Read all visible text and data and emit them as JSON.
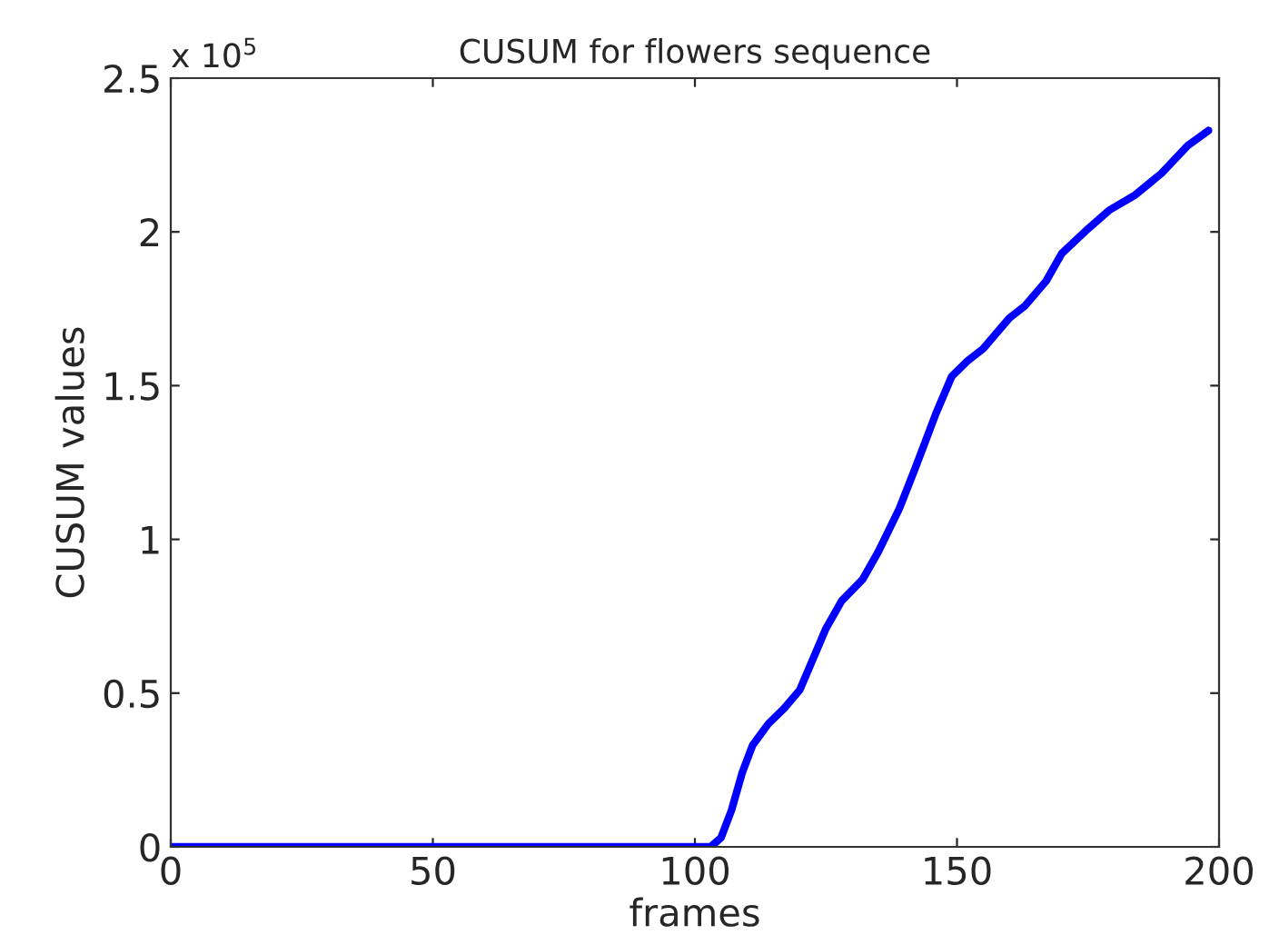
{
  "chart_data": {
    "type": "line",
    "title": "CUSUM for flowers sequence",
    "xlabel": "frames",
    "ylabel": "CUSUM values",
    "annotations": [
      "x 10$^{5}$"
    ],
    "series": [
      {
        "color": "#0000ff",
        "x": [
          0,
          50,
          100,
          103,
          105,
          107,
          109,
          111,
          114,
          117,
          120,
          123,
          125,
          128,
          132,
          135,
          139,
          142,
          146,
          149,
          152,
          155,
          160,
          163,
          167,
          170,
          175,
          179,
          184,
          189,
          194,
          198
        ],
        "values": [
          0,
          0,
          0,
          0,
          0.03,
          0.12,
          0.24,
          0.33,
          0.4,
          0.45,
          0.51,
          0.63,
          0.71,
          0.8,
          0.87,
          0.96,
          1.1,
          1.23,
          1.41,
          1.53,
          1.58,
          1.62,
          1.72,
          1.76,
          1.84,
          1.93,
          2.01,
          2.07,
          2.12,
          2.19,
          2.28,
          2.33
        ]
      }
    ],
    "xlim": [
      0,
      200
    ],
    "xticks": [
      0,
      50,
      100,
      150,
      200
    ],
    "ylim": [
      0,
      2.5
    ],
    "yticks": [
      0,
      0.5,
      1,
      1.5,
      2,
      2.5
    ],
    "grid": false,
    "line_style": "solid"
  }
}
